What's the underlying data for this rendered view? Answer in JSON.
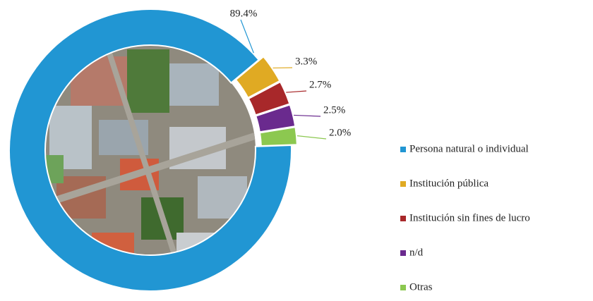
{
  "chart_data": {
    "type": "donut",
    "categories": [
      "Persona natural o individual",
      "Institución pública",
      "Institución sin fines de lucro",
      "n/d",
      "Otras"
    ],
    "values": [
      89.4,
      3.3,
      2.7,
      2.5,
      2.0
    ],
    "value_labels": [
      "89.4%",
      "3.3%",
      "2.7%",
      "2.5%",
      "2.0%"
    ],
    "colors": [
      "#2196d3",
      "#e0aa23",
      "#a8282a",
      "#6a2a8e",
      "#8cc850"
    ],
    "legend": "right"
  }
}
